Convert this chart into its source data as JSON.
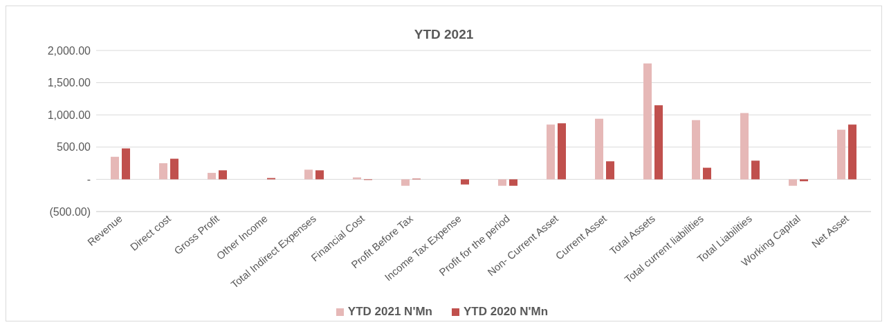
{
  "chart_data": {
    "type": "bar",
    "title": "YTD 2021",
    "categories": [
      "Revenue",
      "Direct cost",
      "Gross Profit",
      "Other Income",
      "Total Indirect Expenses",
      "Financial Cost",
      "Profit Before Tax",
      "Income Tax Expense",
      "Profit for the period",
      "Non- Current Asset",
      "Current Asset",
      "Total Assets",
      "Total current liabilities",
      "Total Liabilities",
      "Working Capital",
      "Net Asset"
    ],
    "series": [
      {
        "name": "YTD 2021 N'Mn",
        "color": "#e6b8b7",
        "values": [
          350,
          250,
          100,
          0,
          150,
          30,
          -100,
          0,
          -100,
          850,
          940,
          1800,
          920,
          1030,
          -100,
          770
        ]
      },
      {
        "name": "YTD 2020 N'Mn",
        "color": "#c0504d",
        "values": [
          480,
          320,
          140,
          20,
          140,
          -10,
          10,
          -80,
          -100,
          870,
          280,
          1150,
          180,
          290,
          -30,
          850
        ]
      }
    ],
    "ylim": [
      -500,
      2000
    ],
    "yticks": [
      {
        "value": -500,
        "label": "(500.00)"
      },
      {
        "value": 0,
        "label": "-"
      },
      {
        "value": 500,
        "label": "500.00"
      },
      {
        "value": 1000,
        "label": "1,000.00"
      },
      {
        "value": 1500,
        "label": "1,500.00"
      },
      {
        "value": 2000,
        "label": "2,000.00"
      }
    ],
    "grid": "y",
    "legend": "bottom"
  }
}
